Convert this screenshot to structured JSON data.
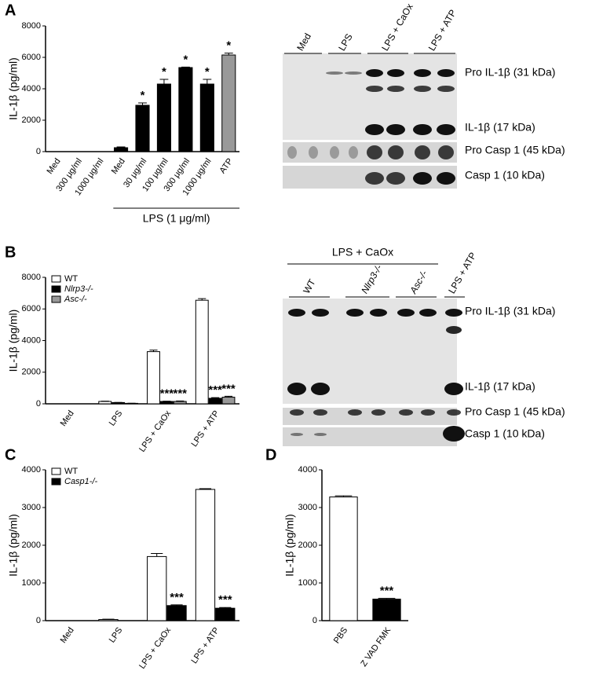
{
  "panels": [
    "A",
    "B",
    "C",
    "D"
  ],
  "chart_data": [
    {
      "type": "bar",
      "ylabel": "IL-1β (pg/ml)",
      "ylim": [
        0,
        8000
      ],
      "yticks": [
        0,
        2000,
        4000,
        6000,
        8000
      ],
      "categories": [
        "Med",
        "300 μg/ml",
        "1000 μg/ml",
        "Med",
        "30 μg/ml",
        "100 μg/ml",
        "300 μg/ml",
        "1000 μg/ml",
        "ATP"
      ],
      "group_label": "LPS (1 μg/ml)",
      "series": [
        {
          "colors": [
            "#000000",
            "#000000",
            "#000000",
            "#000000",
            "#000000",
            "#000000",
            "#000000",
            "#000000",
            "#999999"
          ],
          "values": [
            0,
            0,
            0,
            250,
            2950,
            4300,
            5350,
            4300,
            6150
          ],
          "errors": [
            0,
            0,
            0,
            50,
            150,
            300,
            30,
            300,
            120
          ],
          "significance": [
            null,
            null,
            null,
            null,
            "*",
            "*",
            "*",
            "*",
            "*"
          ]
        }
      ]
    },
    {
      "type": "bar",
      "ylabel": "IL-1β (pg/ml)",
      "ylim": [
        0,
        8000
      ],
      "yticks": [
        0,
        2000,
        4000,
        6000,
        8000
      ],
      "categories": [
        "Med",
        "LPS",
        "LPS + CaOx",
        "LPS + ATP"
      ],
      "series": [
        {
          "name": "WT",
          "color": "#ffffff",
          "values": [
            0,
            150,
            3300,
            6550
          ],
          "errors": [
            0,
            20,
            100,
            100
          ],
          "significance": [
            null,
            null,
            null,
            null
          ]
        },
        {
          "name": "Nlrp3-/-",
          "color": "#000000",
          "values": [
            0,
            80,
            150,
            350
          ],
          "errors": [
            0,
            10,
            20,
            40
          ],
          "significance": [
            null,
            null,
            "***",
            "***"
          ]
        },
        {
          "name": "Asc-/-",
          "color": "#999999",
          "values": [
            0,
            30,
            150,
            420
          ],
          "errors": [
            0,
            5,
            30,
            60
          ],
          "significance": [
            null,
            null,
            "***",
            "***"
          ]
        }
      ]
    },
    {
      "type": "bar",
      "ylabel": "IL-1β (pg/ml)",
      "ylim": [
        0,
        4000
      ],
      "yticks": [
        0,
        1000,
        2000,
        3000,
        4000
      ],
      "categories": [
        "Med",
        "LPS",
        "LPS + CaOx",
        "LPS + ATP"
      ],
      "series": [
        {
          "name": "WT",
          "color": "#ffffff",
          "values": [
            0,
            30,
            1700,
            3480
          ],
          "errors": [
            0,
            10,
            80,
            20
          ],
          "significance": [
            null,
            null,
            null,
            null
          ]
        },
        {
          "name": "Casp1-/-",
          "color": "#000000",
          "values": [
            0,
            0,
            400,
            330
          ],
          "errors": [
            0,
            0,
            20,
            20
          ],
          "significance": [
            null,
            null,
            "***",
            "***"
          ]
        }
      ]
    },
    {
      "type": "bar",
      "ylabel": "IL-1β (pg/ml)",
      "ylim": [
        0,
        4000
      ],
      "yticks": [
        0,
        1000,
        2000,
        3000,
        4000
      ],
      "categories": [
        "PBS",
        "Z VAD FMK"
      ],
      "series": [
        {
          "colors": [
            "#ffffff",
            "#000000"
          ],
          "values": [
            3280,
            570
          ],
          "errors": [
            30,
            20
          ],
          "significance": [
            null,
            "***"
          ]
        }
      ]
    }
  ],
  "blots": [
    {
      "lanes": [
        "Med",
        "LPS",
        "LPS + CaOx",
        "LPS + ATP"
      ],
      "bands": [
        "Pro IL-1β (31 kDa)",
        "IL-1β (17 kDa)",
        "Pro Casp 1 (45 kDa)",
        "Casp 1 (10 kDa)"
      ]
    },
    {
      "header": "LPS + CaOx",
      "lanes": [
        "WT",
        "Nlrp3-/-",
        "Asc-/-",
        "LPS + ATP"
      ],
      "bands": [
        "Pro IL-1β (31 kDa)",
        "IL-1β (17 kDa)",
        "Pro Casp 1 (45 kDa)",
        "Casp 1 (10 kDa)"
      ]
    }
  ]
}
